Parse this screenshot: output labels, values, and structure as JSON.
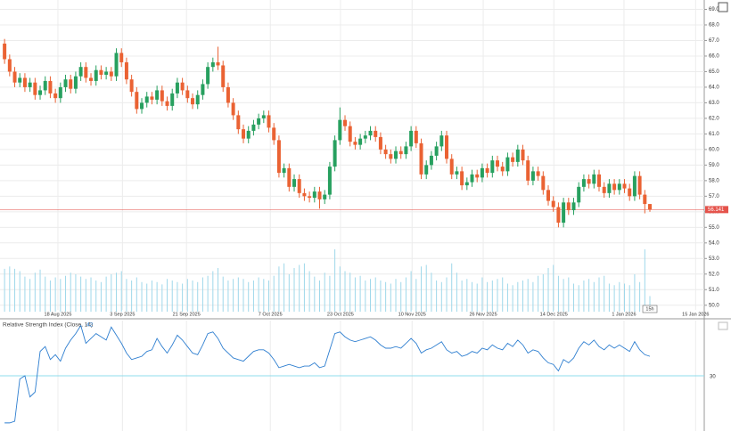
{
  "chart_data": {
    "type": "candlestick",
    "xlim": [
      -0.9,
      137.7
    ],
    "xticks": [
      {
        "value": 10.5,
        "label": "18 Aug 2025"
      },
      {
        "value": 23.2,
        "label": "3 Sep 2025"
      },
      {
        "value": 35.8,
        "label": "21 Sep 2025"
      },
      {
        "value": 52.3,
        "label": "7 Oct 2025"
      },
      {
        "value": 66.1,
        "label": "23 Oct 2025"
      },
      {
        "value": 80.2,
        "label": "10 Nov 2025"
      },
      {
        "value": 94.2,
        "label": "26 Nov 2025"
      },
      {
        "value": 108.1,
        "label": "14 Dec 2025"
      },
      {
        "value": 121.9,
        "label": "1 Jan 2026"
      },
      {
        "value": 136,
        "label": "15 Jan 2026"
      }
    ],
    "ylim": [
      49.3,
      69.6
    ],
    "yticks": [
      {
        "value": 50,
        "label": "50.0"
      },
      {
        "value": 51,
        "label": "51.0"
      },
      {
        "value": 52,
        "label": "52.0"
      },
      {
        "value": 53,
        "label": "53.0"
      },
      {
        "value": 54,
        "label": "54.0"
      },
      {
        "value": 55,
        "label": "55.0"
      },
      {
        "value": 56,
        "label": "56.0"
      },
      {
        "value": 57,
        "label": "57.0"
      },
      {
        "value": 58,
        "label": "58.0"
      },
      {
        "value": 59,
        "label": "59.0"
      },
      {
        "value": 60,
        "label": "60.0"
      },
      {
        "value": 61,
        "label": "61.0"
      },
      {
        "value": 62,
        "label": "62.0"
      },
      {
        "value": 63,
        "label": "63.0"
      },
      {
        "value": 64,
        "label": "64.0"
      },
      {
        "value": 65,
        "label": "65.0"
      },
      {
        "value": 66,
        "label": "66.0"
      },
      {
        "value": 67,
        "label": "67.0"
      },
      {
        "value": 68,
        "label": "68.0"
      },
      {
        "value": 69,
        "label": "69.0"
      }
    ],
    "grid": true,
    "up_color": "#27a05f",
    "down_color": "#ea6233",
    "last_price_color": "#e5534b",
    "open": [
      66.8,
      65.8,
      65.0,
      64.3,
      64.6,
      64.0,
      64.3,
      63.5,
      63.8,
      64.4,
      63.6,
      63.3,
      64.0,
      64.5,
      63.9,
      64.7,
      65.3,
      64.6,
      64.4,
      65.1,
      64.8,
      65.0,
      64.7,
      66.2,
      65.6,
      64.5,
      63.7,
      62.6,
      63.0,
      63.4,
      63.2,
      63.8,
      63.1,
      62.8,
      63.6,
      64.3,
      63.8,
      63.3,
      62.9,
      63.5,
      64.2,
      65.3,
      65.6,
      65.4,
      64.0,
      63.0,
      62.2,
      61.3,
      60.7,
      61.2,
      61.6,
      62.0,
      62.2,
      61.4,
      60.6,
      58.5,
      58.8,
      57.6,
      58.1,
      57.2,
      57.0,
      56.9,
      57.3,
      56.8,
      57.1,
      58.9,
      60.6,
      61.9,
      61.5,
      60.5,
      60.3,
      60.7,
      60.9,
      61.2,
      60.8,
      60.0,
      59.7,
      59.4,
      59.9,
      59.7,
      60.2,
      61.2,
      60.4,
      58.4,
      59.0,
      59.6,
      60.2,
      60.9,
      59.4,
      58.4,
      58.6,
      57.7,
      57.9,
      58.4,
      58.2,
      58.8,
      58.5,
      59.3,
      58.9,
      58.6,
      59.5,
      59.2,
      60.0,
      59.3,
      58.0,
      58.6,
      58.3,
      57.4,
      56.7,
      56.3,
      55.3,
      56.6,
      56.1,
      56.6,
      57.6,
      58.1,
      57.8,
      58.4,
      57.6,
      57.2,
      57.8,
      57.4,
      57.8,
      57.5,
      57.0,
      58.3,
      57.1,
      56.5
    ],
    "high": [
      67.1,
      66.1,
      65.3,
      64.9,
      64.9,
      64.6,
      64.6,
      64.1,
      64.7,
      64.7,
      63.9,
      64.3,
      64.8,
      64.8,
      65.0,
      65.6,
      65.6,
      64.9,
      65.4,
      65.4,
      65.3,
      65.3,
      66.5,
      66.5,
      65.9,
      64.8,
      64.0,
      63.3,
      63.7,
      63.7,
      64.1,
      64.1,
      63.4,
      63.9,
      64.6,
      64.6,
      64.1,
      63.6,
      63.8,
      64.5,
      65.6,
      65.9,
      66.6,
      65.7,
      64.3,
      63.3,
      62.5,
      61.6,
      61.5,
      61.9,
      62.3,
      62.5,
      62.5,
      61.7,
      60.9,
      59.1,
      59.1,
      58.4,
      58.4,
      57.5,
      57.3,
      57.6,
      57.6,
      57.4,
      59.2,
      60.9,
      62.7,
      62.2,
      61.8,
      60.8,
      61.0,
      61.2,
      61.5,
      61.5,
      61.1,
      60.3,
      60.0,
      60.2,
      60.2,
      60.5,
      61.5,
      61.5,
      60.7,
      59.3,
      59.9,
      60.5,
      61.2,
      61.2,
      59.7,
      58.9,
      58.9,
      58.2,
      58.7,
      58.7,
      59.1,
      59.1,
      59.6,
      59.6,
      59.2,
      59.8,
      59.8,
      60.3,
      60.3,
      59.6,
      58.9,
      58.9,
      58.6,
      57.7,
      57.0,
      56.6,
      56.9,
      56.9,
      56.9,
      57.9,
      58.4,
      58.4,
      58.7,
      58.7,
      57.9,
      58.1,
      58.1,
      58.1,
      58.1,
      57.8,
      58.6,
      58.6,
      57.4,
      56.5
    ],
    "low": [
      65.5,
      64.7,
      64.0,
      64.0,
      63.7,
      63.7,
      63.2,
      63.2,
      63.5,
      63.3,
      63.0,
      63.0,
      63.7,
      63.6,
      63.6,
      64.4,
      64.3,
      64.1,
      64.1,
      64.5,
      64.5,
      64.4,
      64.4,
      65.3,
      64.2,
      63.4,
      62.3,
      62.3,
      62.7,
      62.9,
      62.9,
      62.8,
      62.5,
      62.5,
      63.3,
      63.5,
      63.0,
      62.6,
      62.6,
      63.2,
      63.9,
      65.0,
      65.1,
      63.7,
      62.7,
      61.9,
      61.0,
      60.4,
      60.4,
      60.9,
      61.3,
      61.7,
      61.1,
      60.3,
      58.2,
      58.2,
      57.3,
      57.3,
      56.9,
      56.7,
      56.6,
      56.6,
      56.2,
      56.5,
      56.8,
      58.6,
      60.3,
      61.2,
      60.2,
      60.0,
      60.0,
      60.4,
      60.6,
      60.5,
      59.7,
      59.4,
      59.1,
      59.1,
      59.4,
      59.4,
      59.9,
      60.1,
      58.1,
      58.1,
      58.7,
      59.3,
      59.9,
      59.1,
      58.1,
      58.1,
      57.4,
      57.4,
      57.6,
      57.9,
      57.9,
      58.2,
      58.2,
      58.6,
      58.3,
      58.3,
      58.9,
      58.9,
      59.0,
      57.7,
      57.7,
      58.0,
      57.1,
      56.4,
      56.0,
      55.0,
      55.0,
      55.8,
      55.8,
      56.3,
      57.3,
      57.5,
      57.5,
      57.3,
      56.9,
      56.9,
      57.1,
      57.1,
      57.2,
      56.7,
      56.7,
      56.8,
      55.9,
      56.0
    ],
    "close": [
      65.8,
      65.0,
      64.3,
      64.6,
      64.0,
      64.3,
      63.5,
      63.8,
      64.4,
      63.6,
      63.3,
      64.0,
      64.5,
      63.9,
      64.7,
      65.3,
      64.6,
      64.4,
      65.1,
      64.8,
      65.0,
      64.7,
      66.2,
      65.6,
      64.5,
      63.7,
      62.6,
      63.0,
      63.4,
      63.2,
      63.8,
      63.1,
      62.8,
      63.6,
      64.3,
      63.8,
      63.3,
      62.9,
      63.5,
      64.2,
      65.3,
      65.6,
      65.4,
      64.0,
      63.0,
      62.2,
      61.3,
      60.7,
      61.2,
      61.6,
      62.0,
      62.2,
      61.4,
      60.6,
      58.5,
      58.8,
      57.6,
      58.1,
      57.2,
      57.0,
      56.9,
      57.3,
      56.8,
      57.1,
      58.9,
      60.6,
      61.9,
      61.5,
      60.5,
      60.3,
      60.7,
      60.9,
      61.2,
      60.8,
      60.0,
      59.7,
      59.4,
      59.9,
      59.7,
      60.2,
      61.2,
      60.4,
      58.4,
      59.0,
      59.6,
      60.2,
      60.9,
      59.4,
      58.4,
      58.6,
      57.7,
      57.9,
      58.4,
      58.2,
      58.8,
      58.5,
      59.3,
      58.9,
      58.6,
      59.5,
      59.2,
      60.0,
      59.3,
      58.0,
      58.6,
      58.3,
      57.4,
      56.7,
      56.3,
      55.3,
      56.6,
      56.1,
      56.6,
      57.6,
      58.1,
      57.8,
      58.4,
      57.6,
      57.2,
      57.8,
      57.4,
      57.8,
      57.5,
      57.0,
      58.3,
      57.1,
      56.5,
      56.141
    ],
    "countdown": "15h",
    "volume": {
      "color": "#9fd8ea",
      "values": [
        55,
        58,
        55,
        52,
        45,
        42,
        50,
        54,
        45,
        40,
        44,
        42,
        46,
        50,
        48,
        45,
        42,
        44,
        40,
        38,
        45,
        48,
        50,
        52,
        42,
        40,
        44,
        38,
        36,
        40,
        38,
        35,
        42,
        40,
        38,
        36,
        42,
        40,
        38,
        44,
        46,
        52,
        56,
        45,
        40,
        42,
        44,
        42,
        38,
        40,
        44,
        42,
        40,
        46,
        58,
        62,
        48,
        56,
        60,
        62,
        52,
        45,
        40,
        50,
        46,
        80,
        58,
        52,
        50,
        44,
        46,
        40,
        42,
        44,
        40,
        38,
        36,
        42,
        38,
        44,
        52,
        42,
        58,
        60,
        50,
        40,
        38,
        44,
        62,
        50,
        40,
        42,
        38,
        36,
        44,
        38,
        40,
        42,
        44,
        36,
        34,
        38,
        40,
        42,
        38,
        46,
        48,
        56,
        60,
        46,
        42,
        44,
        36,
        34,
        40,
        42,
        38,
        44,
        46,
        36,
        34,
        38,
        36,
        34,
        48,
        38,
        80,
        20
      ]
    },
    "rsi": {
      "title": "Relative Strength Index (Close, 14)",
      "color": "#2f7fd0",
      "level_color": "#8fdcec",
      "ylim": [
        -4,
        64
      ],
      "yticks": [
        30
      ],
      "values": [
        1,
        1,
        2,
        28,
        30,
        17,
        20,
        45,
        48,
        40,
        43,
        39,
        47,
        52,
        56,
        61,
        50,
        53,
        56,
        54,
        52,
        60,
        55,
        50,
        44,
        40,
        41,
        42,
        45,
        46,
        53,
        48,
        44,
        49,
        55,
        52,
        48,
        44,
        43,
        49,
        56,
        57,
        53,
        47,
        44,
        41,
        40,
        39,
        42,
        45,
        46,
        46,
        44,
        40,
        35,
        36,
        37,
        36,
        35,
        36,
        36,
        38,
        35,
        36,
        46,
        56,
        57,
        54,
        52,
        51,
        52,
        53,
        54,
        52,
        49,
        47,
        47,
        48,
        47,
        50,
        53,
        50,
        44,
        46,
        47,
        49,
        51,
        46,
        44,
        45,
        42,
        43,
        45,
        44,
        47,
        46,
        49,
        47,
        46,
        50,
        48,
        52,
        49,
        44,
        46,
        45,
        41,
        38,
        37,
        33,
        40,
        38,
        41,
        47,
        51,
        49,
        52,
        48,
        46,
        49,
        47,
        49,
        47,
        45,
        51,
        46,
        43,
        42
      ]
    }
  }
}
